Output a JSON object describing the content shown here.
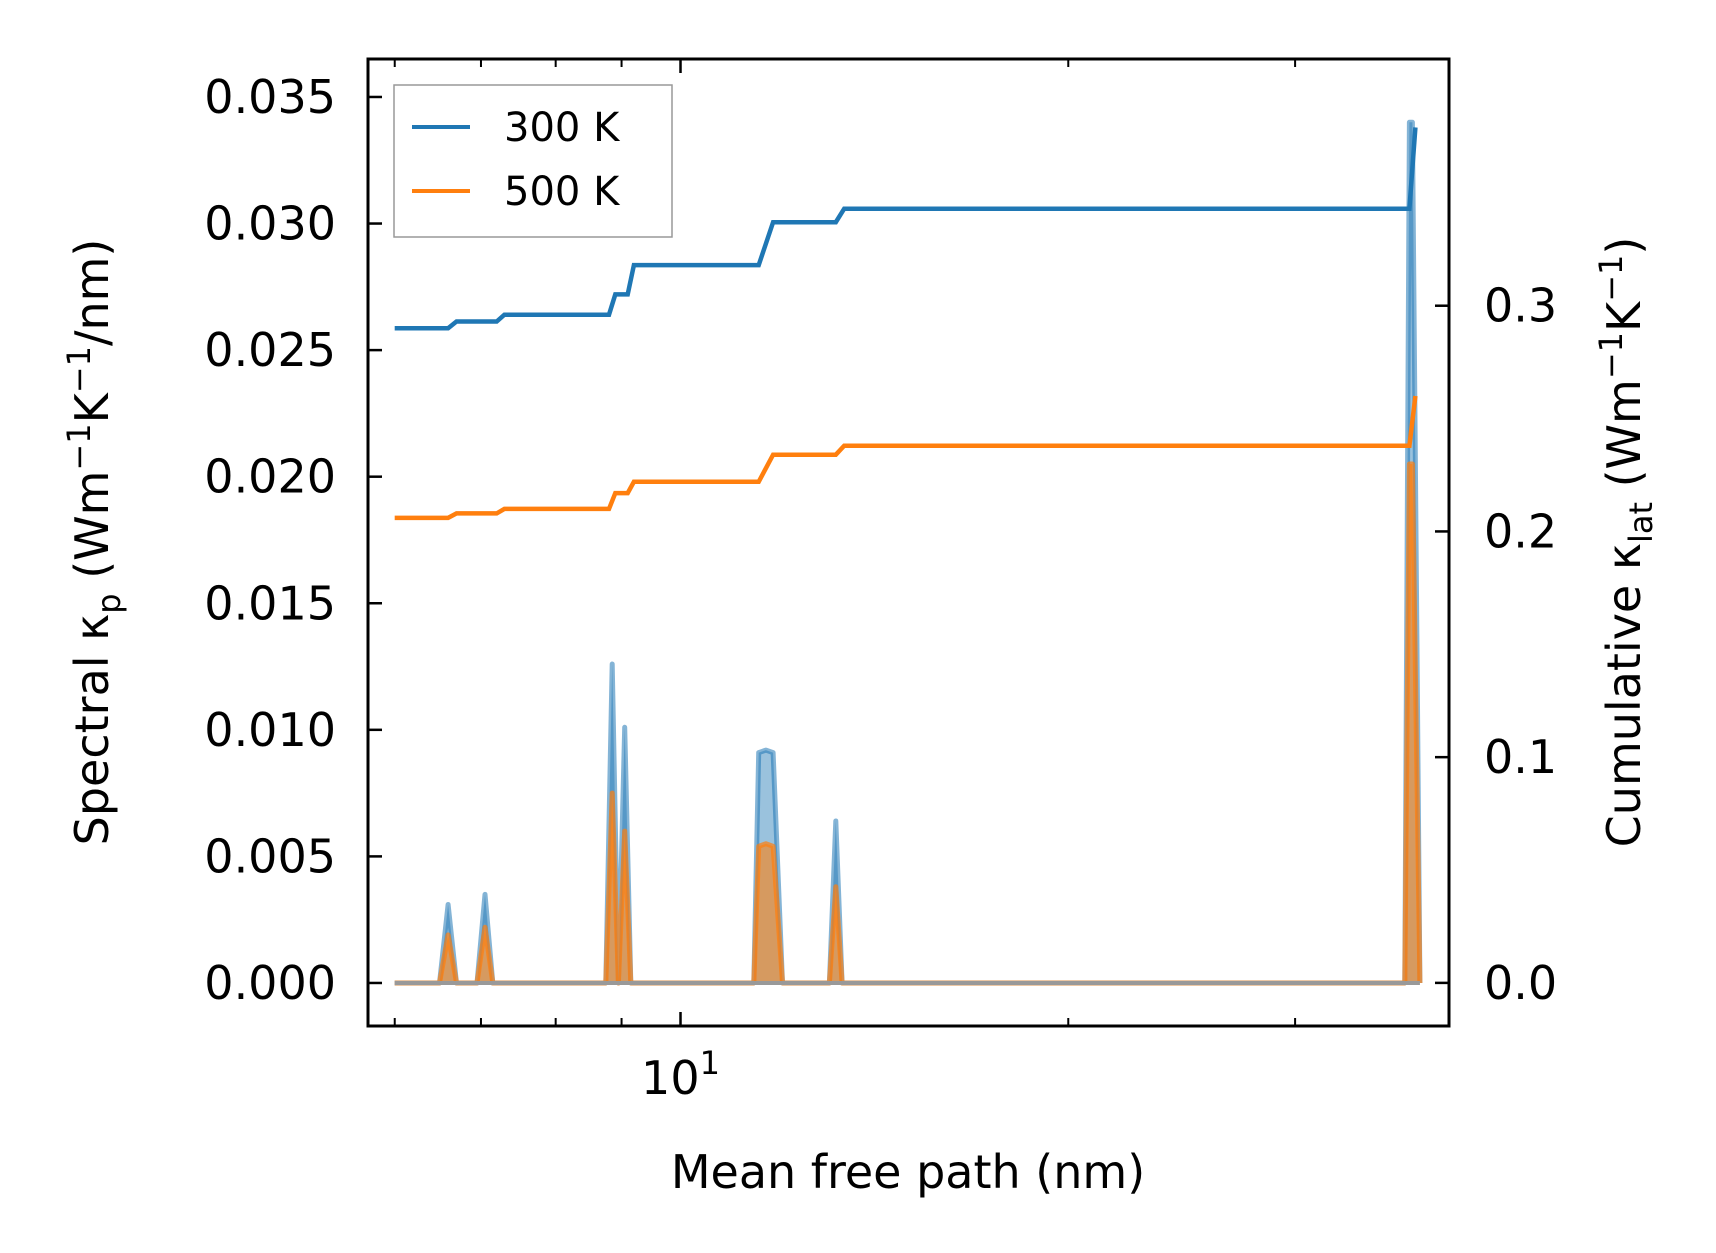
{
  "chart_data": {
    "type": "line",
    "x_scale": "log",
    "xlim": [
      5.72,
      39.5
    ],
    "ylim_left": [
      -0.0017,
      0.0365
    ],
    "ylim_right": [
      -0.0191,
      0.4093
    ],
    "x_major_tick_values": [
      10
    ],
    "x_major_tick_labels": [
      {
        "base": "10",
        "exp": "1"
      }
    ],
    "x_minor_tick_values": [
      6,
      7,
      8,
      9,
      20,
      30
    ],
    "y_left_ticks": [
      0.0,
      0.005,
      0.01,
      0.015,
      0.02,
      0.025,
      0.03,
      0.035
    ],
    "y_left_tick_labels": [
      "0.000",
      "0.005",
      "0.010",
      "0.015",
      "0.020",
      "0.025",
      "0.030",
      "0.035"
    ],
    "y_right_ticks": [
      0.0,
      0.1,
      0.2,
      0.3
    ],
    "y_right_tick_labels": [
      "0.0",
      "0.1",
      "0.2",
      "0.3"
    ],
    "xlabel": "Mean free path (nm)",
    "ylabel_left": {
      "pre": "Spectral κ",
      "sub": "p",
      "mid": " (Wm",
      "sup1": "−1",
      "mid2": "K",
      "sup2": "−1",
      "post": "/nm)"
    },
    "ylabel_right": {
      "pre": "Cumulative κ",
      "sub": "lat",
      "mid": " (Wm",
      "sup1": "−1",
      "mid2": "K",
      "sup2": "−1",
      "post": ")"
    },
    "legend": {
      "position": "top-left",
      "entries": [
        "300 K",
        "500 K"
      ]
    },
    "colors": {
      "300 K": "#1f77b4",
      "500 K": "#ff7f0e",
      "spectral_fill": "#1f77b4"
    },
    "series": [
      {
        "name": "300 K",
        "axis": "right",
        "kind": "cumulative",
        "x": [
          6.0,
          6.6,
          6.7,
          7.2,
          7.3,
          8.8,
          8.9,
          9.1,
          9.2,
          11.5,
          11.8,
          13.2,
          13.4,
          36.8,
          37.2
        ],
        "y": [
          0.29,
          0.29,
          0.293,
          0.293,
          0.296,
          0.296,
          0.305,
          0.305,
          0.318,
          0.318,
          0.337,
          0.337,
          0.343,
          0.343,
          0.379
        ]
      },
      {
        "name": "500 K",
        "axis": "right",
        "kind": "cumulative",
        "x": [
          6.0,
          6.6,
          6.7,
          7.2,
          7.3,
          8.8,
          8.9,
          9.1,
          9.2,
          11.5,
          11.8,
          13.2,
          13.4,
          36.8,
          37.2
        ],
        "y": [
          0.206,
          0.206,
          0.208,
          0.208,
          0.21,
          0.21,
          0.217,
          0.217,
          0.222,
          0.222,
          0.234,
          0.234,
          0.238,
          0.238,
          0.26
        ]
      },
      {
        "name": "300 K spectral",
        "axis": "left",
        "kind": "spectral",
        "x": [
          6.0,
          6.5,
          6.6,
          6.7,
          6.95,
          7.05,
          7.15,
          8.75,
          8.85,
          8.95,
          9.05,
          9.15,
          11.4,
          11.5,
          11.65,
          11.8,
          12.0,
          13.05,
          13.2,
          13.35,
          36.5,
          36.8,
          37.0,
          37.5
        ],
        "y": [
          0,
          0,
          0.0031,
          0,
          0,
          0.0035,
          0,
          0,
          0.0126,
          0,
          0.0101,
          0,
          0,
          0.0091,
          0.0092,
          0.0091,
          0,
          0,
          0.0064,
          0,
          0,
          0.034,
          0.034,
          0
        ]
      },
      {
        "name": "500 K spectral",
        "axis": "left",
        "kind": "spectral",
        "x": [
          6.0,
          6.5,
          6.6,
          6.7,
          6.95,
          7.05,
          7.15,
          8.75,
          8.85,
          8.95,
          9.05,
          9.15,
          11.4,
          11.5,
          11.65,
          11.8,
          12.0,
          13.05,
          13.2,
          13.35,
          36.5,
          36.8,
          37.0,
          37.5
        ],
        "y": [
          0,
          0,
          0.0019,
          0,
          0,
          0.0022,
          0,
          0,
          0.0075,
          0,
          0.006,
          0,
          0,
          0.0054,
          0.0055,
          0.0054,
          0,
          0,
          0.0038,
          0,
          0,
          0.0205,
          0.0205,
          0
        ]
      }
    ]
  }
}
